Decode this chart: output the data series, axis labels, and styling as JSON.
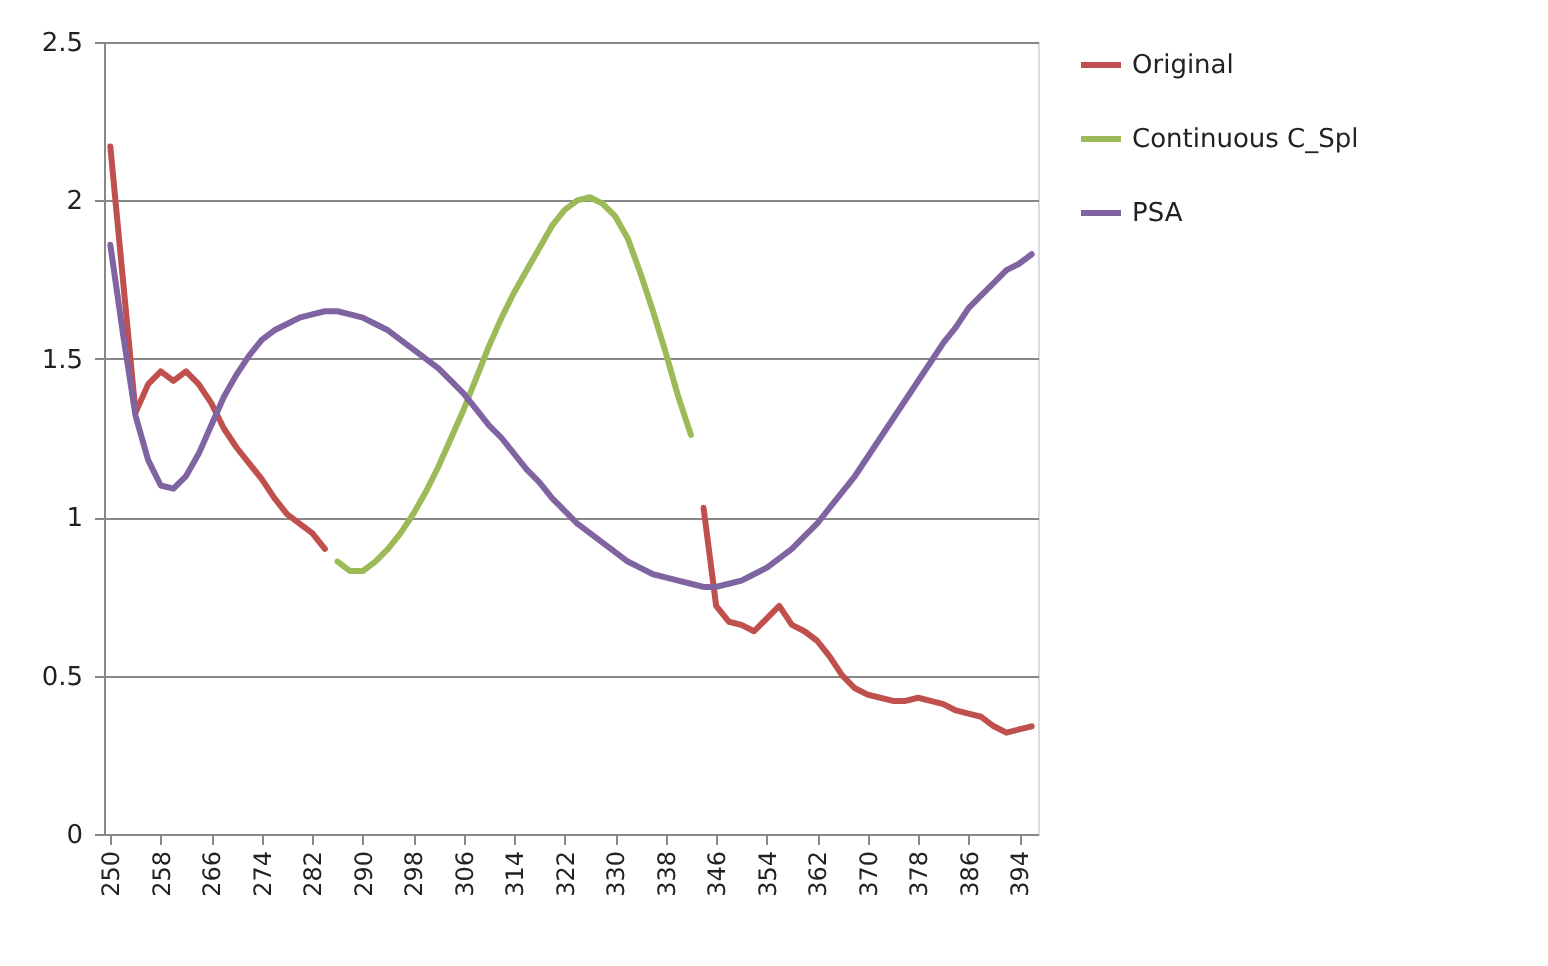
{
  "chart_data": {
    "type": "line",
    "xlim": [
      249,
      397
    ],
    "xticks": [
      250,
      258,
      266,
      274,
      282,
      290,
      298,
      306,
      314,
      322,
      330,
      338,
      346,
      354,
      362,
      370,
      378,
      386,
      394
    ],
    "ylim": [
      0,
      2.5
    ],
    "yticks": [
      0,
      0.5,
      1,
      1.5,
      2,
      2.5
    ],
    "grid": "y",
    "legend": "right",
    "line_style": "solid",
    "marker": "none",
    "series": [
      {
        "name": "Original",
        "color": "#c0504d",
        "x": [
          250,
          252,
          254,
          256,
          258,
          260,
          262,
          264,
          266,
          268,
          270,
          272,
          274,
          276,
          278,
          280,
          282,
          284,
          314,
          344,
          346,
          348,
          350,
          352,
          354,
          356,
          358,
          360,
          362,
          364,
          366,
          368,
          370,
          372,
          374,
          376,
          378,
          380,
          382,
          384,
          386,
          388,
          390,
          392,
          394,
          396
        ],
        "values": [
          2.17,
          1.75,
          1.33,
          1.42,
          1.46,
          1.43,
          1.46,
          1.42,
          1.36,
          1.28,
          1.22,
          1.17,
          1.12,
          1.06,
          1.01,
          0.98,
          0.95,
          0.9,
          null,
          1.03,
          0.72,
          0.67,
          0.66,
          0.64,
          0.68,
          0.72,
          0.66,
          0.64,
          0.61,
          0.56,
          0.5,
          0.46,
          0.44,
          0.43,
          0.42,
          0.42,
          0.43,
          0.42,
          0.41,
          0.39,
          0.38,
          0.37,
          0.34,
          0.32,
          0.33,
          0.34
        ]
      },
      {
        "name": "Continuous C_Spl",
        "color": "#9bbb59",
        "x": [
          286,
          288,
          290,
          292,
          294,
          296,
          298,
          300,
          302,
          304,
          306,
          308,
          310,
          312,
          314,
          316,
          318,
          320,
          322,
          324,
          326,
          328,
          330,
          332,
          334,
          336,
          338,
          340,
          342
        ],
        "values": [
          0.86,
          0.83,
          0.83,
          0.86,
          0.9,
          0.95,
          1.01,
          1.08,
          1.16,
          1.25,
          1.34,
          1.44,
          1.54,
          1.63,
          1.71,
          1.78,
          1.85,
          1.92,
          1.97,
          2.0,
          2.01,
          1.99,
          1.95,
          1.88,
          1.77,
          1.65,
          1.52,
          1.38,
          1.26
        ]
      },
      {
        "name": "PSA",
        "color": "#8064a2",
        "x": [
          250,
          252,
          254,
          256,
          258,
          260,
          262,
          264,
          266,
          268,
          270,
          272,
          274,
          276,
          278,
          280,
          282,
          284,
          286,
          288,
          290,
          292,
          294,
          296,
          298,
          300,
          302,
          304,
          306,
          308,
          310,
          312,
          314,
          316,
          318,
          320,
          322,
          324,
          326,
          328,
          330,
          332,
          334,
          336,
          338,
          340,
          342,
          344,
          346,
          348,
          350,
          352,
          354,
          356,
          358,
          360,
          362,
          364,
          366,
          368,
          370,
          372,
          374,
          376,
          378,
          380,
          382,
          384,
          386,
          388,
          390,
          392,
          394,
          396
        ],
        "values": [
          1.86,
          1.58,
          1.32,
          1.18,
          1.1,
          1.09,
          1.13,
          1.2,
          1.29,
          1.38,
          1.45,
          1.51,
          1.56,
          1.59,
          1.61,
          1.63,
          1.64,
          1.65,
          1.65,
          1.64,
          1.63,
          1.61,
          1.59,
          1.56,
          1.53,
          1.5,
          1.47,
          1.43,
          1.39,
          1.34,
          1.29,
          1.25,
          1.2,
          1.15,
          1.11,
          1.06,
          1.02,
          0.98,
          0.95,
          0.92,
          0.89,
          0.86,
          0.84,
          0.82,
          0.81,
          0.8,
          0.79,
          0.78,
          0.78,
          0.79,
          0.8,
          0.82,
          0.84,
          0.87,
          0.9,
          0.94,
          0.98,
          1.03,
          1.08,
          1.13,
          1.19,
          1.25,
          1.31,
          1.37,
          1.43,
          1.49,
          1.55,
          1.6,
          1.66,
          1.7,
          1.74,
          1.78,
          1.8,
          1.83
        ]
      }
    ]
  }
}
